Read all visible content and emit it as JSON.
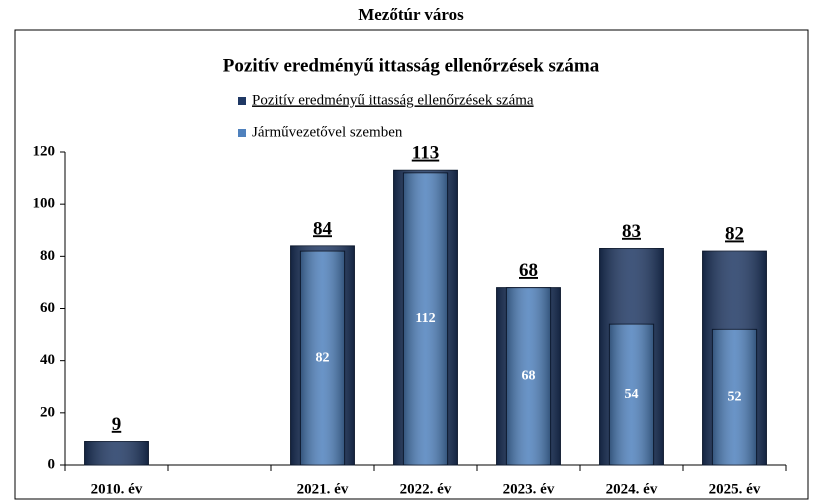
{
  "chart_data": {
    "type": "bar",
    "title": "Mezőtúr város",
    "subtitle": "Pozitív eredményű ittasság ellenőrzések száma",
    "categories": [
      "2010. év",
      null,
      "2021. év",
      "2022. év",
      "2023. év",
      "2024. év",
      "2025. év"
    ],
    "series": [
      {
        "name": "Pozitív eredményű ittasság ellenőrzések száma",
        "color": "#1f3864",
        "values": [
          9,
          null,
          84,
          113,
          68,
          83,
          82
        ]
      },
      {
        "name": "Járművezetővel szemben",
        "color": "#4f81bd",
        "values": [
          null,
          null,
          82,
          112,
          68,
          54,
          52
        ]
      }
    ],
    "ylim": [
      0,
      120
    ],
    "yticks": [
      0,
      20,
      40,
      60,
      80,
      100,
      120
    ],
    "grid": false
  }
}
